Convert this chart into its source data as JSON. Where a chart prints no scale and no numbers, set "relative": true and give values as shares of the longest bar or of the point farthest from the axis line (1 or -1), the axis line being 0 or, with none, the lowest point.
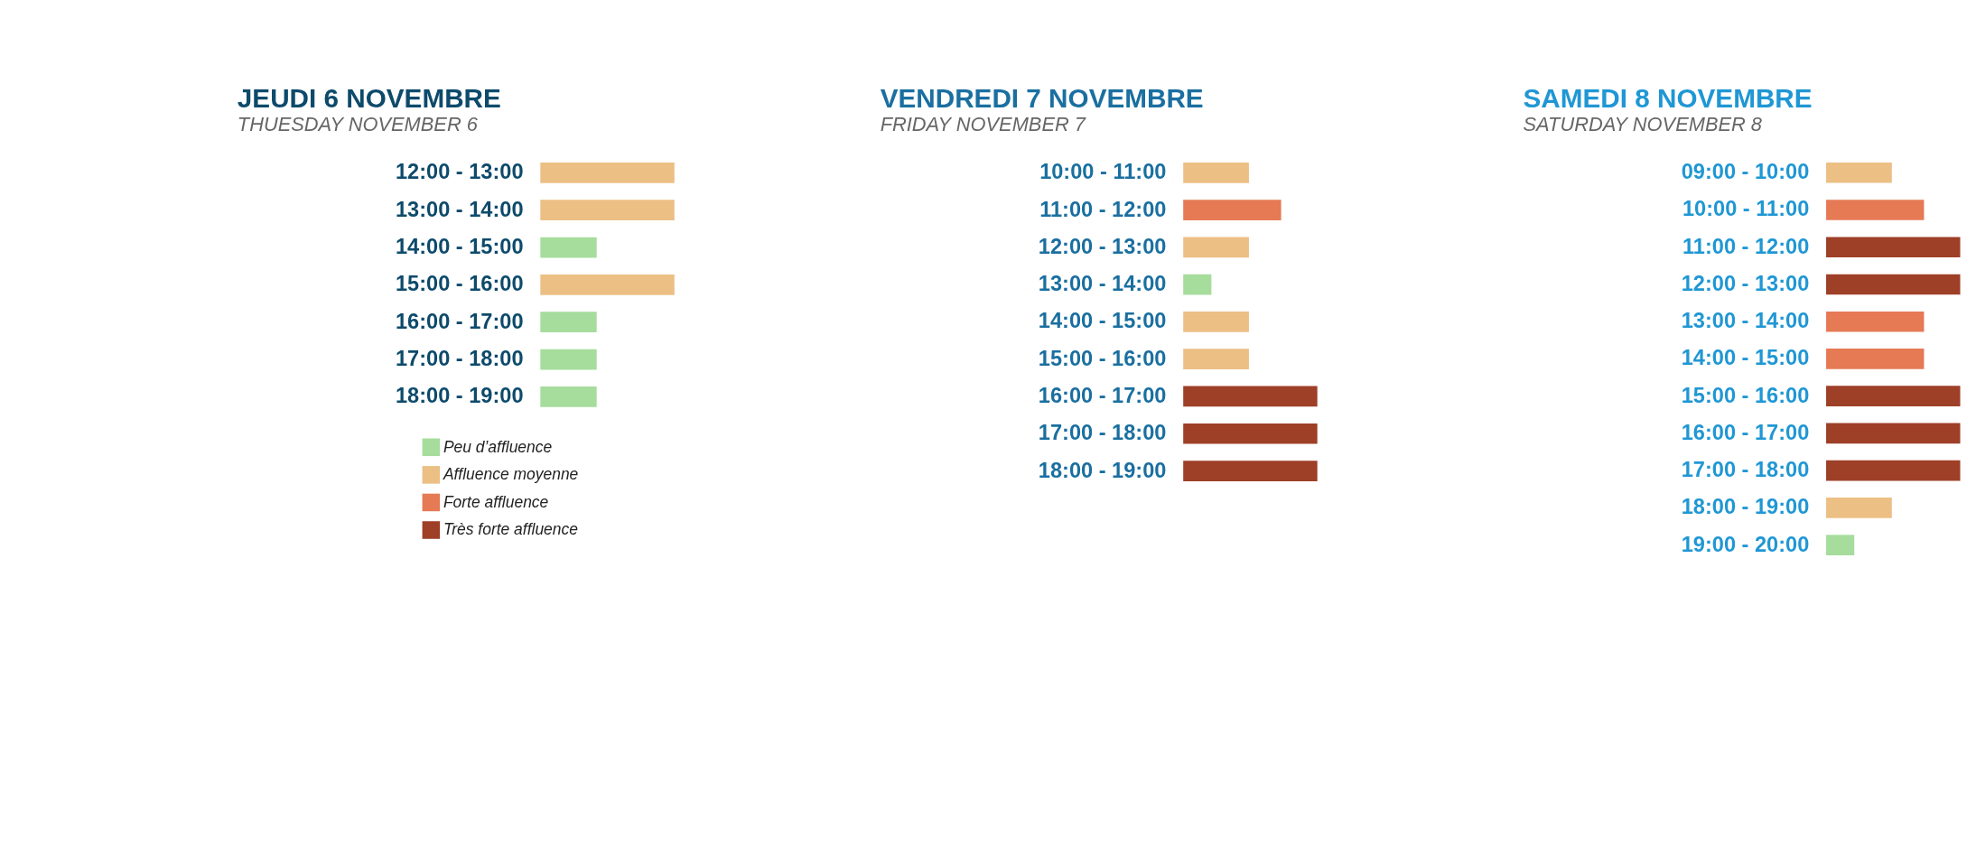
{
  "chart_data": [
    {
      "type": "bar",
      "orientation": "horizontal",
      "relative": true,
      "title": "JEUDI 6 NOVEMBRE",
      "subtitle": "THUESDAY NOVEMBER 6",
      "legend": "bottom left",
      "categories": [
        "12:00 - 13:00",
        "13:00 - 14:00",
        "14:00 - 15:00",
        "15:00 - 16:00",
        "16:00 - 17:00",
        "17:00 - 18:00",
        "18:00 - 19:00"
      ],
      "series": [
        {
          "name": "Peu d’affluence",
          "color": "#a6dc9c",
          "values": [
            null,
            null,
            0.42,
            null,
            0.42,
            0.42,
            0.42
          ]
        },
        {
          "name": "Affluence moyenne",
          "color": "#ecbf85",
          "values": [
            1,
            1,
            null,
            1,
            null,
            null,
            null
          ]
        },
        {
          "name": "Forte affluence",
          "color": "#e57a55",
          "values": [
            null,
            null,
            null,
            null,
            null,
            null,
            null
          ]
        },
        {
          "name": "Très forte affluence",
          "color": "#9e3f28",
          "values": [
            null,
            null,
            null,
            null,
            null,
            null,
            null
          ]
        }
      ]
    },
    {
      "type": "bar",
      "orientation": "horizontal",
      "relative": true,
      "title": "VENDREDI 7 NOVEMBRE",
      "subtitle": "FRIDAY NOVEMBER 7",
      "categories": [
        "10:00 - 11:00",
        "11:00 - 12:00",
        "12:00 - 13:00",
        "13:00 - 14:00",
        "14:00 - 15:00",
        "15:00 - 16:00",
        "16:00 - 17:00",
        "17:00 - 18:00",
        "18:00 - 19:00"
      ],
      "series": [
        {
          "color": "#a6dc9c",
          "values": [
            null,
            null,
            null,
            0.21,
            null,
            null,
            null,
            null,
            null
          ]
        },
        {
          "color": "#ecbf85",
          "values": [
            0.49,
            null,
            0.49,
            null,
            0.49,
            0.49,
            null,
            null,
            null
          ]
        },
        {
          "color": "#e57a55",
          "values": [
            null,
            0.73,
            null,
            null,
            null,
            null,
            null,
            null,
            null
          ]
        },
        {
          "color": "#9e3f28",
          "values": [
            null,
            null,
            null,
            null,
            null,
            null,
            1,
            1,
            1
          ]
        }
      ]
    },
    {
      "type": "bar",
      "orientation": "horizontal",
      "relative": true,
      "title": "SAMEDI 8 NOVEMBRE",
      "subtitle": "SATURDAY NOVEMBER 8",
      "categories": [
        "09:00 - 10:00",
        "10:00 - 11:00",
        "11:00 - 12:00",
        "12:00 - 13:00",
        "13:00 - 14:00",
        "14:00 - 15:00",
        "15:00 - 16:00",
        "16:00 - 17:00",
        "17:00 - 18:00",
        "18:00 - 19:00",
        "19:00 - 20:00"
      ],
      "series": [
        {
          "color": "#a6dc9c",
          "values": [
            null,
            null,
            null,
            null,
            null,
            null,
            null,
            null,
            null,
            null,
            0.21
          ]
        },
        {
          "color": "#ecbf85",
          "values": [
            0.49,
            null,
            null,
            null,
            null,
            null,
            null,
            null,
            null,
            0.49,
            null
          ]
        },
        {
          "color": "#e57a55",
          "values": [
            null,
            0.73,
            null,
            null,
            0.73,
            0.73,
            null,
            null,
            null,
            null,
            null
          ]
        },
        {
          "color": "#9e3f28",
          "values": [
            null,
            null,
            1,
            1,
            null,
            null,
            1,
            1,
            1,
            null,
            null
          ]
        }
      ]
    }
  ]
}
